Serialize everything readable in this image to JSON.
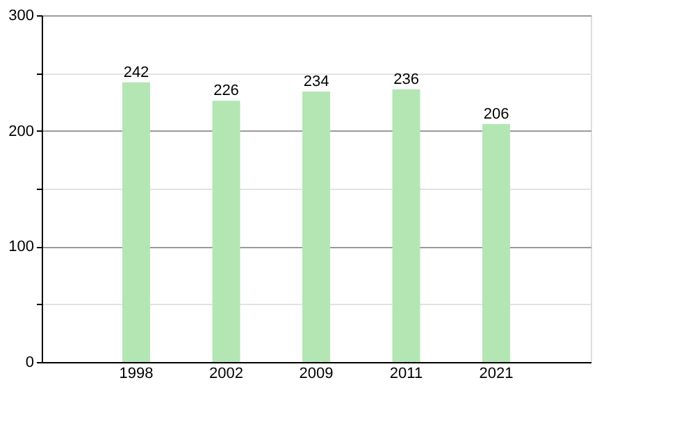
{
  "chart_data": {
    "type": "bar",
    "categories": [
      "1998",
      "2002",
      "2009",
      "2011",
      "2021"
    ],
    "values": [
      242,
      226,
      234,
      236,
      206
    ],
    "color": "#b3e6b3",
    "ylim": [
      0,
      300
    ],
    "yticks": [
      0,
      {
        "value": 50,
        "label": null
      },
      100,
      {
        "value": 150,
        "label": null
      },
      200,
      {
        "value": 250,
        "label": null
      },
      300
    ],
    "grid": "y",
    "data_labels": true
  }
}
